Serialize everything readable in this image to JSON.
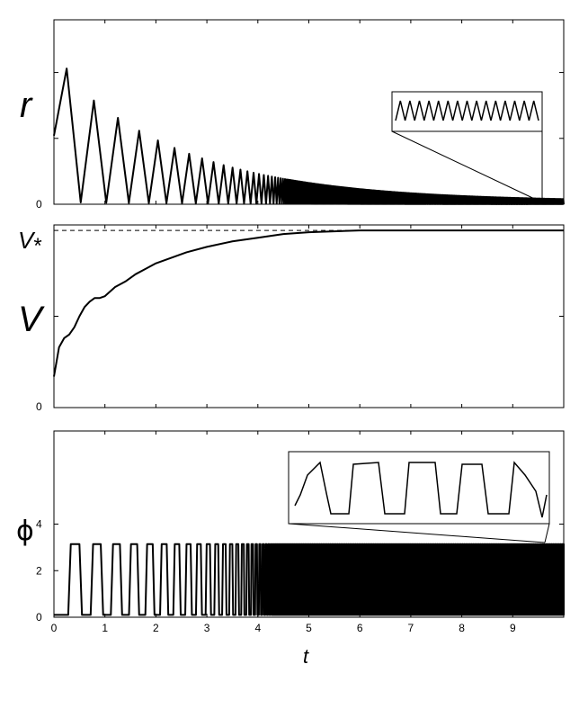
{
  "chart_data": [
    {
      "type": "line",
      "panel": "top",
      "ylabel": "r",
      "xlim": [
        0,
        10
      ],
      "ylim": [
        0,
        1.4
      ],
      "y_ticks": [
        {
          "value": 0,
          "label": "0"
        }
      ],
      "y_tick_marks": [
        0.5,
        1.0
      ],
      "x_tick_labels": [],
      "description_values": {
        "peak_t": 0.25,
        "peak_r": 1.03,
        "period_start": 0.55,
        "period_end": 0.02,
        "amplitude_decay_tau": 2.5
      },
      "inset": {
        "content": "oscillation zoom near t = 9.7",
        "anchor_t": 9.7
      }
    },
    {
      "type": "line",
      "panel": "middle",
      "ylabel": "V",
      "yticklabel_top": "V*",
      "xlim": [
        0,
        10
      ],
      "ylim": [
        0,
        1.0
      ],
      "y_ticks": [
        {
          "value": 0,
          "label": "0"
        }
      ],
      "y_tick_marks": [
        0.5
      ],
      "x_tick_labels": [],
      "reference_line": {
        "style": "dashed",
        "value": 0.97
      },
      "samples": {
        "t": [
          0.0,
          0.1,
          0.2,
          0.3,
          0.4,
          0.5,
          0.6,
          0.7,
          0.8,
          0.9,
          1.0,
          1.2,
          1.4,
          1.6,
          1.8,
          2.0,
          2.3,
          2.6,
          3.0,
          3.5,
          4.0,
          4.5,
          5.0,
          6.0,
          7.0,
          8.0,
          9.0,
          10.0
        ],
        "V": [
          0.17,
          0.33,
          0.38,
          0.4,
          0.44,
          0.5,
          0.55,
          0.58,
          0.6,
          0.6,
          0.61,
          0.66,
          0.69,
          0.73,
          0.76,
          0.79,
          0.82,
          0.85,
          0.88,
          0.91,
          0.93,
          0.95,
          0.96,
          0.97,
          0.97,
          0.97,
          0.97,
          0.97
        ]
      }
    },
    {
      "type": "line",
      "panel": "bottom",
      "ylabel": "ϕ",
      "xlabel": "t",
      "xlim": [
        0,
        10
      ],
      "ylim": [
        0,
        8
      ],
      "y_ticks": [
        {
          "value": 0,
          "label": "0"
        },
        {
          "value": 2,
          "label": "2"
        },
        {
          "value": 4,
          "label": "4"
        }
      ],
      "x_tick_labels": [
        "0",
        "1",
        "2",
        "3",
        "4",
        "5",
        "6",
        "7",
        "8",
        "9"
      ],
      "plateau_value": 3.14,
      "inset": {
        "content": "square-wave zoom near t = 9.6",
        "anchor_t": 9.6
      }
    }
  ]
}
